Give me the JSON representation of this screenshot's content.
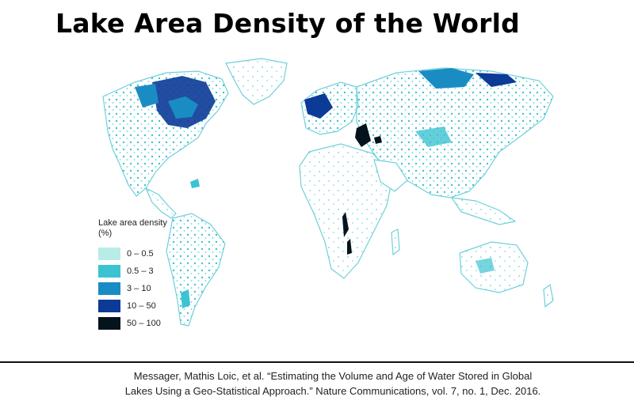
{
  "title": "Lake Area Density of the World",
  "map": {
    "legend_title": "Lake area density (%)",
    "legend": [
      {
        "range": "0 – 0.5",
        "color": "#b7ece8"
      },
      {
        "range": "0.5 – 3",
        "color": "#3cc3d2"
      },
      {
        "range": "3 – 10",
        "color": "#1a8cc4"
      },
      {
        "range": "10 – 50",
        "color": "#0b3a97"
      },
      {
        "range": "50 – 100",
        "color": "#05141c"
      }
    ],
    "land_color": "#ffffff",
    "coast_color": "#6fd0da"
  },
  "citation": {
    "line1": "Messager, Mathis Loic, et al. “Estimating the Volume and Age of Water Stored in Global",
    "line2": "Lakes Using a Geo-Statistical Approach.” Nature Communications, vol. 7, no. 1, Dec. 2016."
  }
}
